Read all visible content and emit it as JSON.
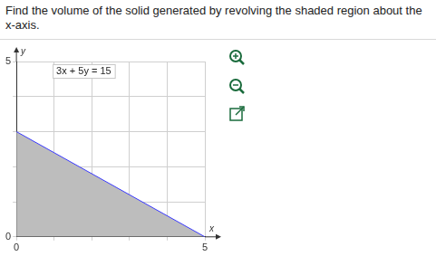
{
  "question": "Find the volume of the solid generated by revolving the shaded region about the x-axis.",
  "chart_data": {
    "type": "area",
    "x": [
      0,
      5
    ],
    "values": [
      3,
      0
    ],
    "color": "#3b3bff",
    "xlim": [
      0,
      5
    ],
    "ylim": [
      0,
      5
    ],
    "xticks": [
      0,
      {
        "value": 1,
        "label": null
      },
      {
        "value": 2,
        "label": null
      },
      {
        "value": 3,
        "label": null
      },
      {
        "value": 4,
        "label": null
      },
      5
    ],
    "yticks": [
      0,
      {
        "value": 1,
        "label": null
      },
      {
        "value": 2,
        "label": null
      },
      {
        "value": 3,
        "label": null
      },
      {
        "value": 4,
        "label": null
      },
      5
    ],
    "grid": true,
    "x_label": "x",
    "y_label": "y",
    "annotations": [
      {
        "text": "3x + 5y = 15"
      }
    ]
  }
}
